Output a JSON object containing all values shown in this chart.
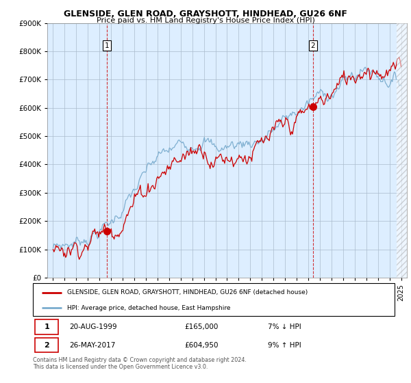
{
  "title": "GLENSIDE, GLEN ROAD, GRAYSHOTT, HINDHEAD, GU26 6NF",
  "subtitle": "Price paid vs. HM Land Registry's House Price Index (HPI)",
  "legend_entry1": "GLENSIDE, GLEN ROAD, GRAYSHOTT, HINDHEAD, GU26 6NF (detached house)",
  "legend_entry2": "HPI: Average price, detached house, East Hampshire",
  "annotation1_label": "1",
  "annotation1_date": "20-AUG-1999",
  "annotation1_price": "£165,000",
  "annotation1_note": "7% ↓ HPI",
  "annotation2_label": "2",
  "annotation2_date": "26-MAY-2017",
  "annotation2_price": "£604,950",
  "annotation2_note": "9% ↑ HPI",
  "footer": "Contains HM Land Registry data © Crown copyright and database right 2024.\nThis data is licensed under the Open Government Licence v3.0.",
  "sale1_x": 1999.64,
  "sale1_y": 165000,
  "sale2_x": 2017.4,
  "sale2_y": 604950,
  "red_color": "#cc0000",
  "blue_color": "#7aacce",
  "dashed_color": "#cc0000",
  "background_color": "#ffffff",
  "chart_bg_color": "#ddeeff",
  "grid_color": "#aabbcc",
  "ylim": [
    0,
    900000
  ],
  "xlim_start": 1994.5,
  "xlim_end": 2025.5
}
